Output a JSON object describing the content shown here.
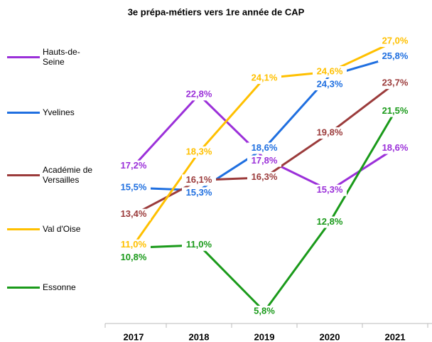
{
  "chart_data": {
    "type": "line",
    "title": "3e prépa-métiers vers 1re année de CAP",
    "categories": [
      "2017",
      "2018",
      "2019",
      "2020",
      "2021"
    ],
    "series": [
      {
        "name": "Hauts-de-Seine",
        "color": "#9b30d9",
        "values": [
          17.2,
          22.8,
          17.8,
          15.3,
          18.6
        ],
        "value_labels": [
          "17,2%",
          "22,8%",
          "17,8%",
          "15,3%",
          "18,6%"
        ]
      },
      {
        "name": "Yvelines",
        "color": "#1f6fe0",
        "values": [
          15.5,
          15.3,
          18.6,
          24.3,
          25.8
        ],
        "value_labels": [
          "15,5%",
          "15,3%",
          "18,6%",
          "24,3%",
          "25,8%"
        ]
      },
      {
        "name": "Académie de Versailles",
        "color": "#9b3b3b",
        "values": [
          13.4,
          16.1,
          16.3,
          19.8,
          23.7
        ],
        "value_labels": [
          "13,4%",
          "16,1%",
          "16,3%",
          "19,8%",
          "23,7%"
        ]
      },
      {
        "name": "Val d'Oise",
        "color": "#ffc000",
        "values": [
          11.0,
          18.3,
          24.1,
          24.6,
          27.0
        ],
        "value_labels": [
          "11,0%",
          "18,3%",
          "24,1%",
          "24,6%",
          "27,0%"
        ]
      },
      {
        "name": "Essonne",
        "color": "#1a9a1a",
        "values": [
          10.8,
          11.0,
          5.8,
          12.8,
          21.5
        ],
        "value_labels": [
          "10,8%",
          "11,0%",
          "5,8%",
          "12,8%",
          "21,5%"
        ]
      }
    ],
    "legend": "left"
  }
}
